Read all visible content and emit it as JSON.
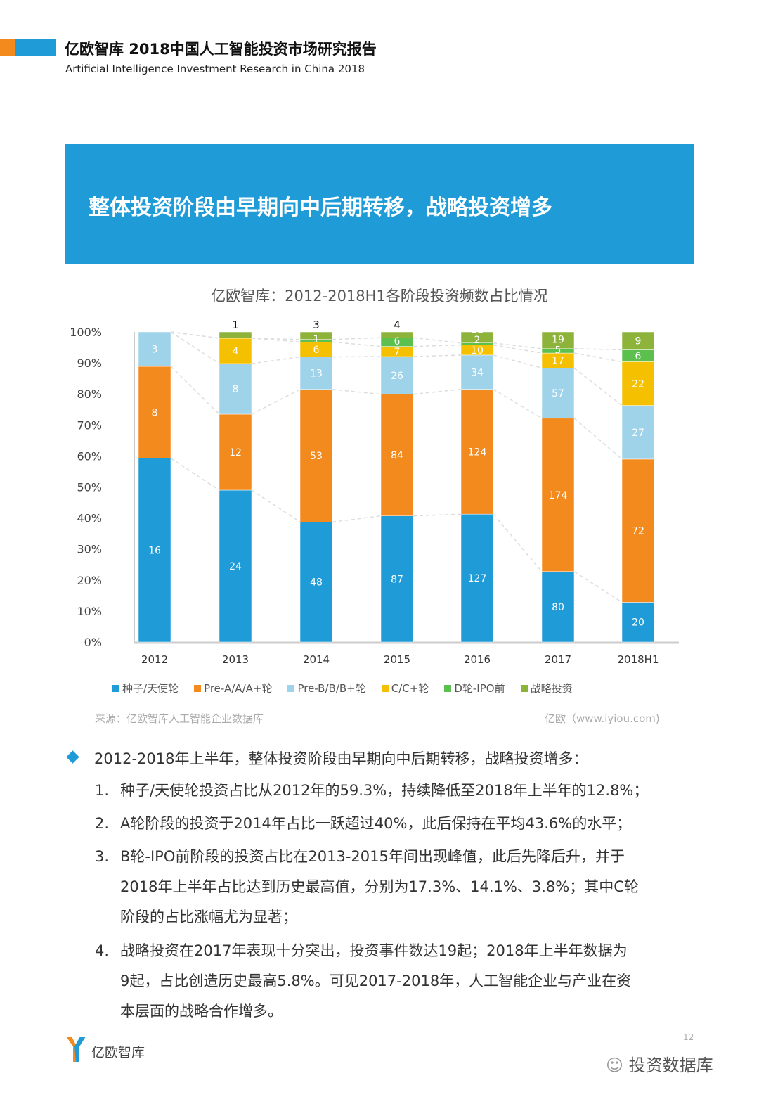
{
  "header": {
    "title": "亿欧智库 2018中国人工智能投资市场研究报告",
    "subtitle": "Artificial Intelligence Investment Research in China 2018",
    "accent_colors": [
      "#f28a1e",
      "#1f9bd7"
    ]
  },
  "banner": {
    "text": "整体投资阶段由早期向中后期转移，战略投资增多",
    "color": "#1f9bd7"
  },
  "chart_data": {
    "type": "bar",
    "stacked": true,
    "normalized": true,
    "title": "亿欧智库：2012-2018H1各阶段投资频数占比情况",
    "categories": [
      "2012",
      "2013",
      "2014",
      "2015",
      "2016",
      "2017",
      "2018H1"
    ],
    "ylim": [
      0,
      100
    ],
    "y_ticks": [
      "0%",
      "10%",
      "20%",
      "30%",
      "40%",
      "50%",
      "60%",
      "70%",
      "80%",
      "90%",
      "100%"
    ],
    "grid": false,
    "legend_position": "bottom",
    "series": [
      {
        "name": "种子/天使轮",
        "color": "#1f9bd7",
        "values": [
          16,
          24,
          48,
          87,
          127,
          80,
          20
        ]
      },
      {
        "name": "Pre-A/A/A+轮",
        "color": "#f28a1e",
        "values": [
          8,
          12,
          53,
          84,
          124,
          174,
          72
        ]
      },
      {
        "name": "Pre-B/B/B+轮",
        "color": "#9fd3ea",
        "values": [
          3,
          8,
          13,
          26,
          34,
          57,
          27
        ]
      },
      {
        "name": "C/C+轮",
        "color": "#f5c000",
        "values": [
          0,
          4,
          6,
          7,
          10,
          17,
          22
        ]
      },
      {
        "name": "D轮-IPO前",
        "color": "#5cc04f",
        "values": [
          0,
          0,
          1,
          6,
          2,
          5,
          6
        ]
      },
      {
        "name": "战略投资",
        "color": "#8db33a",
        "values": [
          0,
          1,
          3,
          4,
          11,
          19,
          9
        ]
      }
    ]
  },
  "source": {
    "left": "来源：亿欧智库人工智能企业数据库",
    "right": "亿欧（www.iyiou.com)"
  },
  "body": {
    "lead": "2012-2018年上半年，整体投资阶段由早期向中后期转移，战略投资增多：",
    "items": [
      {
        "n": "1.",
        "lines": [
          "种子/天使轮投资占比从2012年的59.3%，持续降低至2018年上半年的12.8%；"
        ]
      },
      {
        "n": "2.",
        "lines": [
          "A轮阶段的投资于2014年占比一跃超过40%，此后保持在平均43.6%的水平；"
        ]
      },
      {
        "n": "3.",
        "lines": [
          "B轮-IPO前阶段的投资占比在2013-2015年间出现峰值，此后先降后升，并于",
          "2018年上半年占比达到历史最高值，分别为17.3%、14.1%、3.8%；其中C轮",
          "阶段的占比涨幅尤为显著；"
        ]
      },
      {
        "n": "4.",
        "lines": [
          "战略投资在2017年表现十分突出，投资事件数达19起；2018年上半年数据为",
          "9起，占比创造历史最高5.8%。可见2017-2018年，人工智能企业与产业在资",
          "本层面的战略合作增多。"
        ]
      }
    ]
  },
  "footer": {
    "logo_text": "亿欧智库",
    "watermark": "投资数据库",
    "page": "12"
  }
}
